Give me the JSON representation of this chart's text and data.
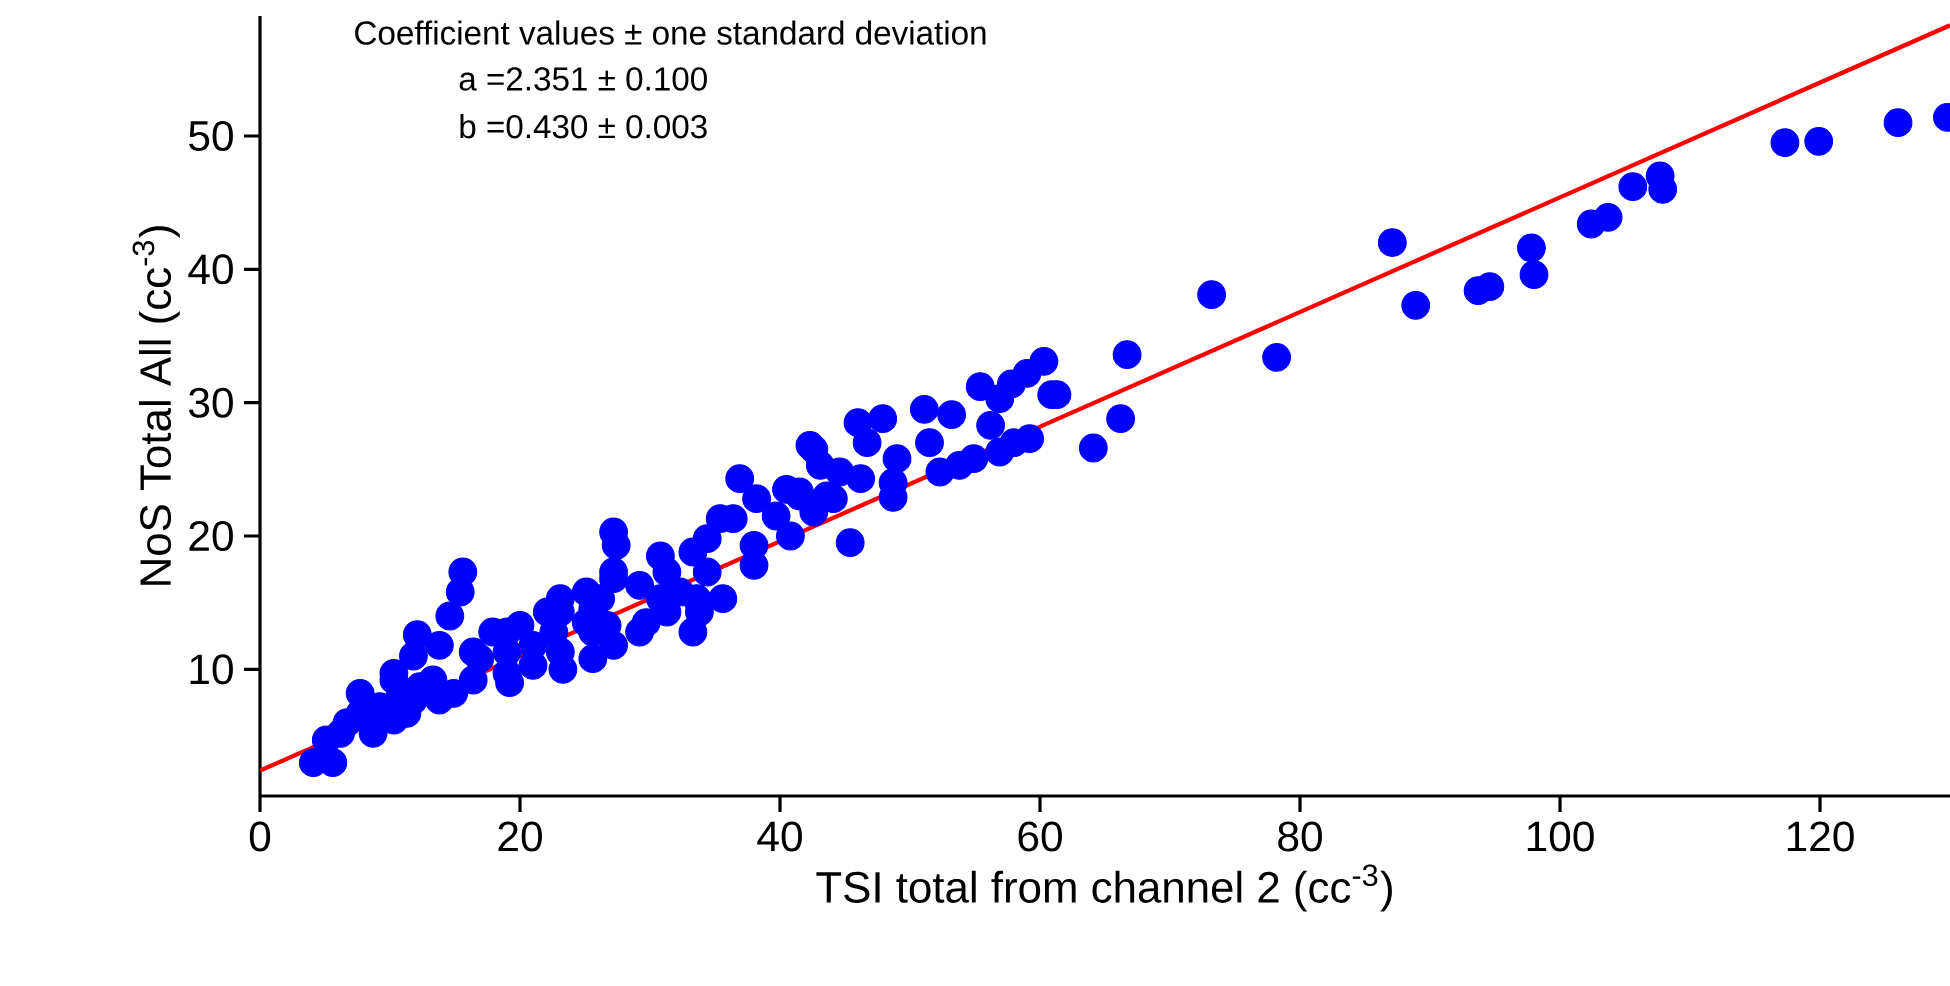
{
  "chart_data": {
    "type": "scatter",
    "xlabel": "TSI total from channel 2 (cc$^{-3}$)",
    "ylabel": "NoS Total All (cc$^{-3}$)",
    "annotations": [
      "Coefficient values ± one standard deviation",
      "a =2.351 ± 0.100",
      "b =0.430 ± 0.003"
    ],
    "xlim": [
      0,
      130
    ],
    "ylim": [
      0.5,
      59
    ],
    "xticks": [
      0,
      20,
      40,
      60,
      80,
      100,
      120
    ],
    "yticks": [
      10,
      20,
      30,
      40,
      50
    ],
    "grid": false,
    "series": [
      {
        "color": "#0000ff",
        "marker": "circle",
        "x": [
          87.1,
          88.9,
          93.7,
          94.6,
          97.8,
          98.0,
          102.4,
          103.7,
          105.6,
          107.7,
          107.9,
          117.3,
          119.9,
          126.0,
          129.8,
          73.2,
          78.2,
          66.7,
          66.2,
          64.1,
          60.3,
          60.9,
          61.3,
          59.0,
          57.8,
          56.9,
          55.4,
          59.2,
          58.0,
          56.2,
          56.9,
          54.9,
          53.8,
          52.3,
          53.2,
          51.5,
          51.1,
          47.9,
          46.0,
          46.7,
          49.0,
          48.7,
          48.7,
          45.4,
          44.6,
          42.6,
          43.6,
          46.2,
          41.5,
          42.3,
          36.9,
          38.2,
          40.5,
          35.4,
          36.4,
          39.7,
          40.8,
          38.0,
          38.0,
          35.6,
          33.6,
          34.4,
          30.8,
          27.2,
          27.4,
          27.2,
          29.2,
          29.7,
          32.3,
          26.2,
          25.6,
          26.7,
          25.6,
          23.3,
          23.1,
          22.1,
          20.0,
          19.0,
          19.2,
          21.0,
          15.6,
          15.4,
          14.6,
          12.1,
          13.8,
          16.4,
          11.8,
          10.3,
          7.7,
          6.7,
          5.1,
          4.1,
          5.6,
          8.7,
          11.3,
          13.8,
          16.4,
          19.0,
          14.9,
          10.3,
          22.6,
          17.9,
          29.2,
          25.6,
          33.3,
          27.2,
          23.1,
          19.0,
          25.1,
          31.3,
          33.8,
          30.8,
          23.1,
          25.1,
          9.2,
          10.8,
          12.3,
          13.3,
          11.8,
          10.3,
          7.7,
          6.2,
          21.0,
          16.9,
          41.5,
          43.1,
          44.1,
          42.6,
          31.3,
          33.3,
          34.4,
          27.2
        ],
        "values": [
          42.0,
          37.3,
          38.4,
          38.7,
          41.6,
          39.6,
          43.4,
          43.9,
          46.2,
          47.0,
          46.0,
          49.5,
          49.6,
          51.0,
          51.4,
          38.1,
          33.4,
          33.6,
          28.8,
          26.6,
          33.1,
          30.6,
          30.6,
          32.2,
          31.4,
          30.3,
          31.2,
          27.3,
          27.0,
          28.3,
          26.3,
          25.8,
          25.3,
          24.8,
          29.1,
          27.0,
          29.5,
          28.8,
          28.5,
          27.0,
          25.8,
          24.0,
          22.9,
          19.5,
          24.8,
          26.5,
          23.0,
          24.3,
          23.0,
          26.8,
          24.3,
          22.8,
          23.5,
          21.3,
          21.3,
          21.5,
          20.0,
          19.3,
          17.8,
          15.3,
          15.3,
          17.3,
          18.5,
          20.3,
          19.3,
          16.8,
          16.3,
          13.5,
          15.8,
          15.3,
          14.5,
          13.3,
          10.8,
          10.0,
          14.3,
          14.3,
          13.3,
          12.8,
          9.0,
          11.8,
          17.3,
          15.8,
          14.0,
          12.6,
          11.8,
          11.3,
          11.0,
          9.2,
          8.2,
          6.0,
          4.7,
          3.0,
          3.0,
          5.2,
          6.7,
          7.7,
          9.2,
          9.7,
          8.2,
          6.2,
          12.8,
          12.8,
          12.8,
          12.8,
          12.8,
          11.8,
          11.3,
          11.3,
          13.5,
          14.3,
          14.3,
          15.3,
          15.3,
          15.8,
          7.2,
          8.2,
          8.7,
          9.2,
          7.7,
          9.7,
          6.7,
          5.2,
          10.3,
          10.8,
          23.3,
          25.3,
          22.8,
          21.8,
          17.3,
          18.8,
          19.8,
          17.3
        ]
      },
      {
        "type": "line",
        "color": "#ff0000",
        "marker": "none",
        "line_style": "solid",
        "x": [
          0,
          130
        ],
        "values": [
          2.4,
          58.3
        ]
      }
    ]
  }
}
